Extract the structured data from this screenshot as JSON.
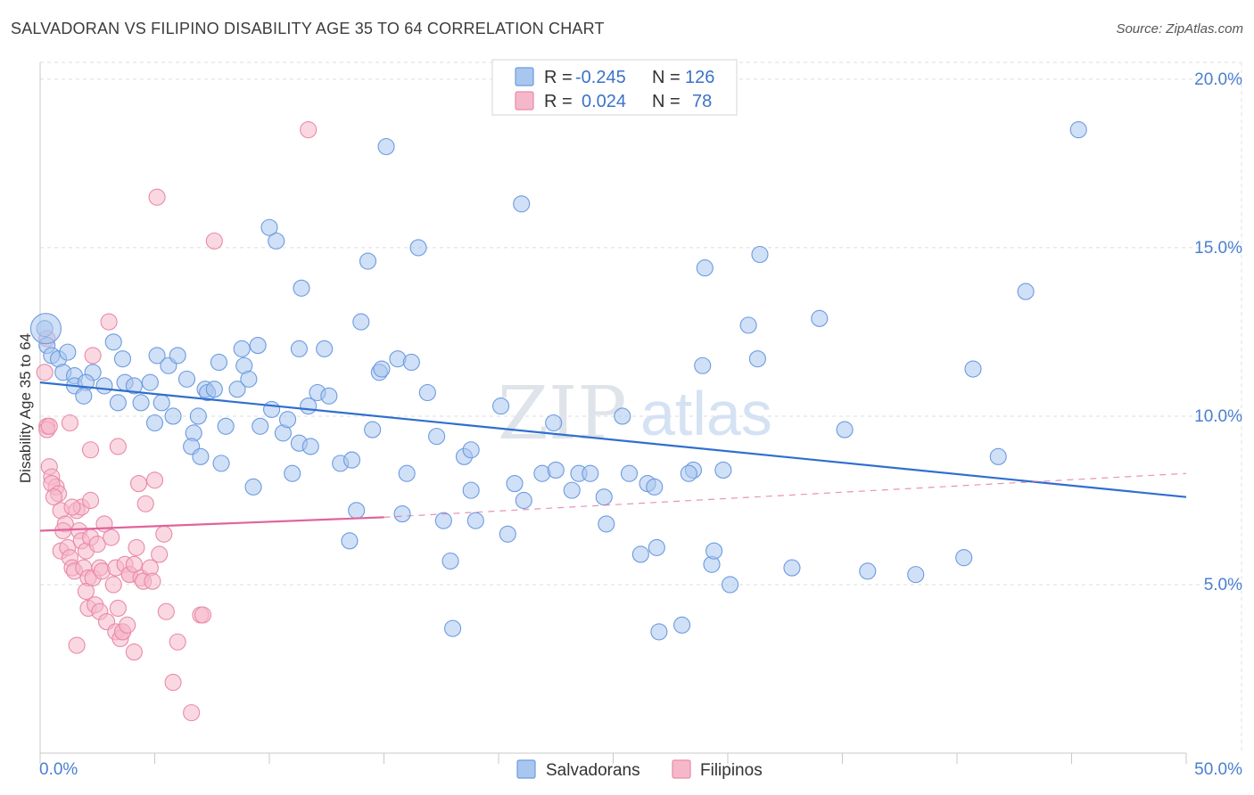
{
  "header": {
    "title": "SALVADORAN VS FILIPINO DISABILITY AGE 35 TO 64 CORRELATION CHART",
    "source": "Source: ZipAtlas.com"
  },
  "watermark": {
    "zip": "ZIP",
    "atlas": "atlas"
  },
  "legend_top": {
    "rows": [
      {
        "r_label": "R =",
        "r_value": "-0.245",
        "n_label": "N =",
        "n_value": "126",
        "color": "#a9c6ef"
      },
      {
        "r_label": "R =",
        "r_value": "0.024",
        "n_label": "N =",
        "n_value": "78",
        "color": "#f5b8ca"
      }
    ]
  },
  "legend_bottom": {
    "items": [
      "Salvadorans",
      "Filipinos"
    ]
  },
  "colors": {
    "blue_fill": "#a9c6ef",
    "blue_stroke": "#6c9be0",
    "blue_line": "#2f6fce",
    "pink_fill": "#f5b8ca",
    "pink_stroke": "#e98aa8",
    "pink_line": "#e0649a",
    "tick_label": "#4a7fd0"
  },
  "chart_data": {
    "type": "scatter",
    "title": "SALVADORAN VS FILIPINO DISABILITY AGE 35 TO 64 CORRELATION CHART",
    "xlabel": "",
    "ylabel": "Disability Age 35 to 64",
    "xlim": [
      0,
      50
    ],
    "ylim": [
      0,
      20.5
    ],
    "x_tick_labels": [
      {
        "value": 0,
        "label": "0.0%"
      },
      {
        "value": 50,
        "label": "50.0%"
      }
    ],
    "y_tick_labels": [
      {
        "value": 5,
        "label": "5.0%"
      },
      {
        "value": 10,
        "label": "10.0%"
      },
      {
        "value": 15,
        "label": "15.0%"
      },
      {
        "value": 20,
        "label": "20.0%"
      }
    ],
    "grid": true,
    "series": [
      {
        "name": "Salvadorans",
        "R": -0.245,
        "N": 126,
        "trend": {
          "x": [
            0,
            50
          ],
          "y": [
            11.0,
            7.6
          ],
          "style": "solid"
        },
        "points": [
          [
            0.2,
            12.6
          ],
          [
            0.3,
            12.1
          ],
          [
            0.5,
            11.8
          ],
          [
            0.8,
            11.7
          ],
          [
            1.2,
            11.9
          ],
          [
            1.0,
            11.3
          ],
          [
            1.5,
            11.2
          ],
          [
            2.3,
            11.3
          ],
          [
            1.5,
            10.9
          ],
          [
            2.0,
            11.0
          ],
          [
            1.9,
            10.6
          ],
          [
            2.8,
            10.9
          ],
          [
            3.6,
            11.7
          ],
          [
            3.2,
            12.2
          ],
          [
            3.4,
            10.4
          ],
          [
            3.7,
            11.0
          ],
          [
            4.4,
            10.4
          ],
          [
            4.1,
            10.9
          ],
          [
            4.8,
            11.0
          ],
          [
            5.0,
            9.8
          ],
          [
            5.1,
            11.8
          ],
          [
            5.6,
            11.5
          ],
          [
            5.3,
            10.4
          ],
          [
            6.0,
            11.8
          ],
          [
            5.8,
            10.0
          ],
          [
            6.4,
            11.1
          ],
          [
            6.7,
            9.5
          ],
          [
            6.6,
            9.1
          ],
          [
            7.0,
            8.8
          ],
          [
            6.9,
            10.0
          ],
          [
            7.2,
            10.8
          ],
          [
            7.3,
            10.7
          ],
          [
            7.8,
            11.6
          ],
          [
            7.6,
            10.8
          ],
          [
            8.1,
            9.7
          ],
          [
            7.9,
            8.6
          ],
          [
            8.6,
            10.8
          ],
          [
            8.8,
            12.0
          ],
          [
            8.9,
            11.5
          ],
          [
            9.1,
            11.1
          ],
          [
            9.5,
            12.1
          ],
          [
            9.6,
            9.7
          ],
          [
            9.3,
            7.9
          ],
          [
            10.1,
            10.2
          ],
          [
            10.6,
            9.5
          ],
          [
            10.8,
            9.9
          ],
          [
            11.0,
            8.3
          ],
          [
            11.3,
            9.2
          ],
          [
            11.3,
            12.0
          ],
          [
            11.7,
            10.3
          ],
          [
            11.8,
            9.1
          ],
          [
            12.1,
            10.7
          ],
          [
            12.6,
            10.6
          ],
          [
            12.4,
            12.0
          ],
          [
            10.3,
            15.2
          ],
          [
            10.0,
            15.6
          ],
          [
            11.4,
            13.8
          ],
          [
            13.1,
            8.6
          ],
          [
            13.6,
            8.7
          ],
          [
            13.8,
            7.2
          ],
          [
            13.5,
            6.3
          ],
          [
            14.0,
            12.8
          ],
          [
            14.3,
            14.6
          ],
          [
            14.5,
            9.6
          ],
          [
            14.8,
            11.3
          ],
          [
            14.9,
            11.4
          ],
          [
            15.1,
            18.0
          ],
          [
            15.8,
            7.1
          ],
          [
            15.6,
            11.7
          ],
          [
            16.0,
            8.3
          ],
          [
            16.2,
            11.6
          ],
          [
            16.5,
            15.0
          ],
          [
            16.9,
            10.7
          ],
          [
            17.3,
            9.4
          ],
          [
            17.6,
            6.9
          ],
          [
            17.9,
            5.7
          ],
          [
            18.5,
            8.8
          ],
          [
            18.8,
            7.8
          ],
          [
            18.8,
            9.0
          ],
          [
            18.0,
            3.7
          ],
          [
            19.0,
            6.9
          ],
          [
            20.1,
            10.3
          ],
          [
            20.4,
            6.5
          ],
          [
            20.7,
            8.0
          ],
          [
            21.1,
            7.5
          ],
          [
            21.0,
            16.3
          ],
          [
            21.9,
            8.3
          ],
          [
            22.4,
            9.8
          ],
          [
            22.5,
            8.4
          ],
          [
            23.2,
            7.8
          ],
          [
            23.5,
            8.3
          ],
          [
            24.0,
            8.3
          ],
          [
            24.6,
            7.6
          ],
          [
            24.7,
            6.8
          ],
          [
            25.4,
            10.0
          ],
          [
            25.7,
            8.3
          ],
          [
            26.2,
            5.9
          ],
          [
            26.5,
            8.0
          ],
          [
            26.8,
            7.9
          ],
          [
            26.9,
            6.1
          ],
          [
            27.0,
            3.6
          ],
          [
            28.5,
            8.4
          ],
          [
            28.3,
            8.3
          ],
          [
            28.0,
            3.8
          ],
          [
            28.9,
            11.5
          ],
          [
            29.0,
            14.4
          ],
          [
            29.3,
            5.6
          ],
          [
            29.4,
            6.0
          ],
          [
            29.8,
            8.4
          ],
          [
            30.1,
            5.0
          ],
          [
            30.9,
            12.7
          ],
          [
            31.3,
            11.7
          ],
          [
            31.4,
            14.8
          ],
          [
            32.8,
            5.5
          ],
          [
            34.0,
            12.9
          ],
          [
            35.1,
            9.6
          ],
          [
            36.1,
            5.4
          ],
          [
            38.2,
            5.3
          ],
          [
            40.3,
            5.8
          ],
          [
            40.7,
            11.4
          ],
          [
            41.8,
            8.8
          ],
          [
            43.0,
            13.7
          ],
          [
            45.3,
            18.5
          ]
        ]
      },
      {
        "name": "Filipinos",
        "R": 0.024,
        "N": 78,
        "trend": {
          "x": [
            0,
            15
          ],
          "y": [
            6.6,
            7.0
          ],
          "style": "solid",
          "extended_to": [
            50,
            8.3
          ],
          "extended_style": "dashed"
        },
        "points": [
          [
            0.3,
            12.3
          ],
          [
            0.2,
            11.3
          ],
          [
            0.3,
            9.7
          ],
          [
            0.3,
            9.6
          ],
          [
            0.4,
            8.5
          ],
          [
            0.5,
            8.2
          ],
          [
            0.7,
            7.9
          ],
          [
            0.5,
            8.0
          ],
          [
            0.8,
            7.7
          ],
          [
            0.6,
            7.6
          ],
          [
            0.9,
            7.2
          ],
          [
            1.1,
            6.8
          ],
          [
            1.0,
            6.6
          ],
          [
            0.9,
            6.0
          ],
          [
            1.2,
            6.1
          ],
          [
            1.3,
            5.8
          ],
          [
            1.4,
            5.5
          ],
          [
            1.6,
            7.2
          ],
          [
            1.8,
            7.3
          ],
          [
            1.7,
            6.6
          ],
          [
            1.8,
            6.3
          ],
          [
            1.5,
            5.4
          ],
          [
            2.0,
            6.0
          ],
          [
            1.9,
            5.5
          ],
          [
            2.1,
            5.2
          ],
          [
            2.0,
            4.8
          ],
          [
            2.1,
            4.3
          ],
          [
            2.2,
            7.5
          ],
          [
            2.2,
            6.4
          ],
          [
            2.3,
            5.2
          ],
          [
            2.4,
            4.4
          ],
          [
            2.5,
            6.2
          ],
          [
            2.6,
            5.5
          ],
          [
            2.7,
            5.4
          ],
          [
            2.6,
            4.2
          ],
          [
            2.8,
            6.8
          ],
          [
            2.9,
            3.9
          ],
          [
            3.1,
            6.4
          ],
          [
            3.3,
            5.5
          ],
          [
            3.2,
            5.0
          ],
          [
            3.3,
            3.6
          ],
          [
            3.4,
            4.3
          ],
          [
            3.5,
            3.4
          ],
          [
            3.6,
            3.6
          ],
          [
            3.6,
            3.6
          ],
          [
            3.7,
            5.6
          ],
          [
            3.8,
            3.8
          ],
          [
            3.9,
            5.3
          ],
          [
            3.9,
            5.3
          ],
          [
            4.1,
            3.0
          ],
          [
            4.2,
            6.1
          ],
          [
            4.1,
            5.6
          ],
          [
            4.4,
            5.2
          ],
          [
            4.5,
            5.1
          ],
          [
            4.6,
            7.4
          ],
          [
            4.3,
            8.0
          ],
          [
            4.8,
            5.5
          ],
          [
            4.9,
            5.1
          ],
          [
            5.0,
            8.1
          ],
          [
            5.2,
            5.9
          ],
          [
            5.4,
            6.5
          ],
          [
            5.5,
            4.2
          ],
          [
            5.8,
            2.1
          ],
          [
            6.0,
            3.3
          ],
          [
            6.6,
            1.2
          ],
          [
            7.0,
            4.1
          ],
          [
            7.1,
            4.1
          ],
          [
            7.6,
            15.2
          ],
          [
            3.4,
            9.1
          ],
          [
            2.2,
            9.0
          ],
          [
            1.4,
            7.3
          ],
          [
            1.3,
            9.8
          ],
          [
            0.4,
            9.7
          ],
          [
            3.0,
            12.8
          ],
          [
            5.1,
            16.5
          ],
          [
            11.7,
            18.5
          ],
          [
            1.6,
            3.2
          ],
          [
            2.3,
            11.8
          ]
        ]
      }
    ]
  }
}
